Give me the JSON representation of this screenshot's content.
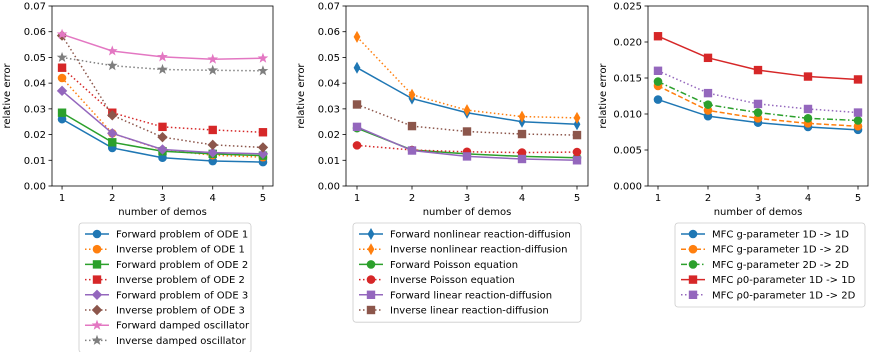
{
  "chart_data": [
    {
      "type": "line",
      "xlabel": "number of demos",
      "ylabel": "relative error",
      "x": [
        1,
        2,
        3,
        4,
        5
      ],
      "xticks": [
        "1",
        "2",
        "3",
        "4",
        "5"
      ],
      "ylim": [
        0,
        0.07
      ],
      "yticks": [
        "0.00",
        "0.01",
        "0.02",
        "0.03",
        "0.04",
        "0.05",
        "0.06",
        "0.07"
      ],
      "grid": false,
      "series": [
        {
          "name": "Forward problem of ODE 1",
          "color": "#1f77b4",
          "marker": "circle",
          "style": "solid",
          "values": [
            0.026,
            0.0148,
            0.011,
            0.0097,
            0.0093
          ]
        },
        {
          "name": "Inverse problem of ODE 1",
          "color": "#ff7f0e",
          "marker": "circle",
          "style": "dotted",
          "values": [
            0.042,
            0.0205,
            0.014,
            0.012,
            0.0112
          ]
        },
        {
          "name": "Forward problem of ODE 2",
          "color": "#2ca02c",
          "marker": "square",
          "style": "solid",
          "values": [
            0.0285,
            0.017,
            0.0135,
            0.0125,
            0.0118
          ]
        },
        {
          "name": "Inverse problem of ODE 2",
          "color": "#d62728",
          "marker": "square",
          "style": "dotted",
          "values": [
            0.046,
            0.0285,
            0.023,
            0.0218,
            0.0209
          ]
        },
        {
          "name": "Forward problem of ODE 3",
          "color": "#9467bd",
          "marker": "diamond",
          "style": "solid",
          "values": [
            0.037,
            0.0205,
            0.0142,
            0.013,
            0.0125
          ]
        },
        {
          "name": "Inverse problem of ODE 3",
          "color": "#8c564b",
          "marker": "diamond",
          "style": "dotted",
          "values": [
            0.0585,
            0.0275,
            0.019,
            0.016,
            0.015
          ]
        },
        {
          "name": "Forward damped oscillator",
          "color": "#e377c2",
          "marker": "star",
          "style": "solid",
          "values": [
            0.059,
            0.0525,
            0.0502,
            0.0493,
            0.0497
          ]
        },
        {
          "name": "Inverse damped oscillator",
          "color": "#7f7f7f",
          "marker": "star",
          "style": "dotted",
          "values": [
            0.05,
            0.0468,
            0.0453,
            0.045,
            0.0448
          ]
        }
      ]
    },
    {
      "type": "line",
      "xlabel": "number of demos",
      "ylabel": "relative error",
      "x": [
        1,
        2,
        3,
        4,
        5
      ],
      "xticks": [
        "1",
        "2",
        "3",
        "4",
        "5"
      ],
      "ylim": [
        0,
        0.07
      ],
      "yticks": [
        "0.00",
        "0.01",
        "0.02",
        "0.03",
        "0.04",
        "0.05",
        "0.06",
        "0.07"
      ],
      "grid": false,
      "series": [
        {
          "name": "Forward nonlinear reaction-diffusion",
          "color": "#1f77b4",
          "marker": "thin_diamond",
          "style": "solid",
          "values": [
            0.046,
            0.034,
            0.0285,
            0.025,
            0.024
          ]
        },
        {
          "name": "Inverse nonlinear reaction-diffusion",
          "color": "#ff7f0e",
          "marker": "thin_diamond",
          "style": "dotted",
          "values": [
            0.058,
            0.0355,
            0.0295,
            0.027,
            0.0265
          ]
        },
        {
          "name": "Forward Poisson equation",
          "color": "#2ca02c",
          "marker": "circle",
          "style": "solid",
          "values": [
            0.0225,
            0.014,
            0.0125,
            0.0115,
            0.011
          ]
        },
        {
          "name": "Inverse Poisson equation",
          "color": "#d62728",
          "marker": "circle",
          "style": "dotted",
          "values": [
            0.0158,
            0.014,
            0.0133,
            0.013,
            0.0132
          ]
        },
        {
          "name": "Forward linear reaction-diffusion",
          "color": "#9467bd",
          "marker": "square",
          "style": "solid",
          "values": [
            0.023,
            0.0138,
            0.0115,
            0.0105,
            0.01
          ]
        },
        {
          "name": "Inverse linear reaction-diffusion",
          "color": "#8c564b",
          "marker": "square",
          "style": "dotted",
          "values": [
            0.0317,
            0.0233,
            0.0212,
            0.0202,
            0.0198
          ]
        }
      ]
    },
    {
      "type": "line",
      "xlabel": "number of demos",
      "ylabel": "relative error",
      "x": [
        1,
        2,
        3,
        4,
        5
      ],
      "xticks": [
        "1",
        "2",
        "3",
        "4",
        "5"
      ],
      "ylim": [
        0,
        0.025
      ],
      "yticks": [
        "0.000",
        "0.005",
        "0.010",
        "0.015",
        "0.020",
        "0.025"
      ],
      "grid": false,
      "series": [
        {
          "name": "MFC g-parameter 1D -> 1D",
          "color": "#1f77b4",
          "marker": "circle",
          "style": "solid",
          "values": [
            0.012,
            0.0097,
            0.0088,
            0.0082,
            0.0078
          ]
        },
        {
          "name": "MFC g-parameter 1D -> 2D",
          "color": "#ff7f0e",
          "marker": "circle",
          "style": "dashed",
          "values": [
            0.0139,
            0.0105,
            0.0094,
            0.0087,
            0.0083
          ]
        },
        {
          "name": "MFC g-parameter 2D -> 2D",
          "color": "#2ca02c",
          "marker": "circle",
          "style": "dashdot",
          "values": [
            0.0145,
            0.0113,
            0.0102,
            0.0094,
            0.0091
          ]
        },
        {
          "name": "MFC ρ0-parameter 1D -> 1D",
          "color": "#d62728",
          "marker": "square",
          "style": "solid",
          "values": [
            0.0208,
            0.0178,
            0.0161,
            0.0152,
            0.0148
          ]
        },
        {
          "name": "MFC ρ0-parameter 1D -> 2D",
          "color": "#9467bd",
          "marker": "square",
          "style": "dotted",
          "values": [
            0.016,
            0.0129,
            0.0114,
            0.0107,
            0.0102
          ]
        }
      ]
    }
  ]
}
